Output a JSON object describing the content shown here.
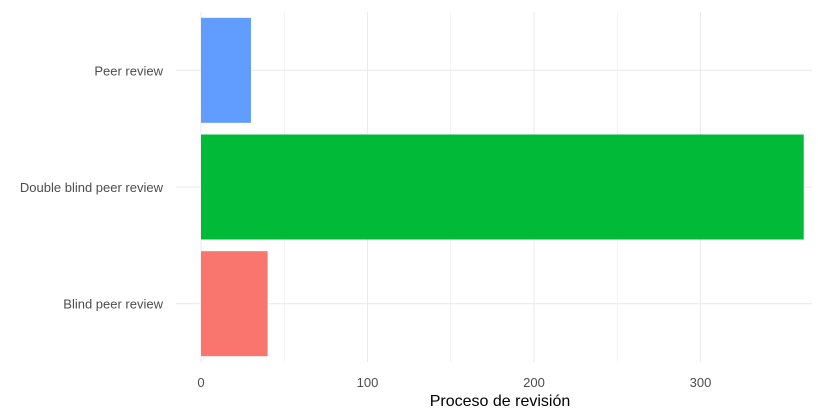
{
  "chart_data": {
    "type": "bar",
    "orientation": "horizontal",
    "categories": [
      "Blind peer review",
      "Double blind peer review",
      "Peer review"
    ],
    "values": [
      40,
      362,
      30
    ],
    "colors": [
      "#F8766D",
      "#00BA38",
      "#619CFF"
    ],
    "title": "",
    "xlabel": "Proceso de revisión",
    "ylabel": "",
    "xlim": [
      0,
      362
    ],
    "xticks": [
      0,
      100,
      200,
      300
    ],
    "xtick_labels": [
      "0",
      "100",
      "200",
      "300"
    ],
    "grid": true,
    "legend": "none"
  },
  "theme": {
    "grid_color": "#ebebeb",
    "background": "#ffffff",
    "tick_text_color": "#4d4d4d"
  }
}
